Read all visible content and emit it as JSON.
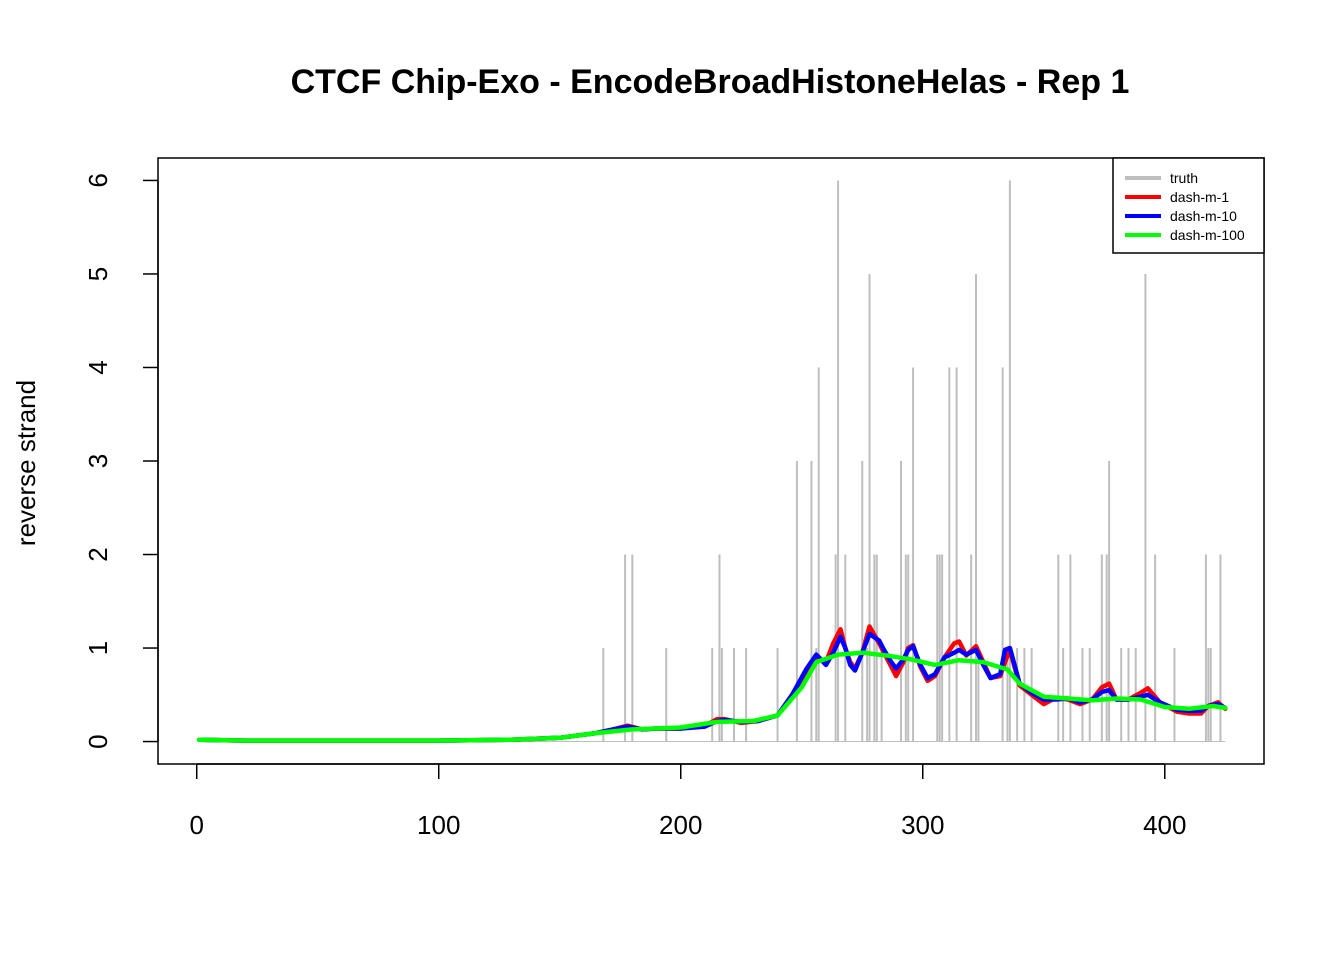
{
  "chart_data": {
    "type": "line",
    "title": "CTCF Chip-Exo - EncodeBroadHistoneHelas - Rep 1",
    "xlabel": "",
    "ylabel": "reverse strand",
    "xlim": [
      -16,
      441
    ],
    "ylim": [
      -0.24,
      6.24
    ],
    "xticks": [
      0,
      100,
      200,
      300,
      400
    ],
    "yticks": [
      0,
      1,
      2,
      3,
      4,
      5,
      6
    ],
    "legend_position": "top-right",
    "legend": [
      "truth",
      "dash-m-1",
      "dash-m-10",
      "dash-m-100"
    ],
    "colors": {
      "truth": "#bebebe",
      "dash-m-1": "#ff0000",
      "dash-m-10": "#0000ff",
      "dash-m-100": "#00ff00"
    },
    "truth": {
      "name": "truth",
      "positions": [
        168,
        177,
        180,
        194,
        213,
        216,
        217,
        222,
        227,
        240,
        248,
        254,
        256,
        257,
        264,
        265,
        268,
        275,
        277,
        278,
        280,
        281,
        283,
        291,
        293,
        294,
        296,
        306,
        307,
        308,
        311,
        314,
        320,
        322,
        323,
        333,
        335,
        336,
        339,
        342,
        345,
        356,
        358,
        361,
        366,
        369,
        374,
        376,
        377,
        382,
        385,
        388,
        392,
        396,
        404,
        417,
        418,
        419,
        423
      ],
      "values": [
        1,
        2,
        2,
        1,
        1,
        2,
        1,
        1,
        1,
        1,
        3,
        3,
        1,
        4,
        2,
        6,
        2,
        3,
        1,
        5,
        2,
        2,
        1,
        3,
        2,
        2,
        4,
        2,
        2,
        2,
        4,
        4,
        2,
        5,
        1,
        4,
        1,
        6,
        1,
        1,
        1,
        2,
        1,
        2,
        1,
        1,
        2,
        2,
        3,
        1,
        1,
        1,
        5,
        2,
        1,
        2,
        1,
        1,
        2
      ],
      "range": [
        1,
        425
      ]
    },
    "series": [
      {
        "name": "dash-m-1",
        "x": [
          1,
          20,
          60,
          100,
          130,
          150,
          165,
          172,
          178,
          184,
          190,
          200,
          210,
          215,
          218,
          225,
          232,
          240,
          246,
          252,
          256,
          260,
          263,
          266,
          268,
          270,
          272,
          275,
          278,
          282,
          284,
          287,
          289,
          292,
          294,
          296,
          299,
          302,
          305,
          309,
          313,
          315,
          318,
          322,
          325,
          328,
          332,
          334,
          336,
          340,
          345,
          350,
          355,
          360,
          365,
          370,
          374,
          377,
          380,
          385,
          390,
          393,
          398,
          405,
          410,
          415,
          418,
          422,
          425
        ],
        "values": [
          0.02,
          0.01,
          0.01,
          0.01,
          0.02,
          0.04,
          0.09,
          0.13,
          0.17,
          0.13,
          0.14,
          0.14,
          0.17,
          0.24,
          0.24,
          0.2,
          0.22,
          0.28,
          0.5,
          0.75,
          0.9,
          0.85,
          1.05,
          1.2,
          1.0,
          0.85,
          0.78,
          0.95,
          1.23,
          1.05,
          0.95,
          0.8,
          0.7,
          0.85,
          1.0,
          1.03,
          0.8,
          0.65,
          0.7,
          0.9,
          1.05,
          1.07,
          0.92,
          1.02,
          0.85,
          0.68,
          0.7,
          0.85,
          0.98,
          0.6,
          0.5,
          0.4,
          0.47,
          0.45,
          0.4,
          0.45,
          0.58,
          0.62,
          0.45,
          0.45,
          0.52,
          0.57,
          0.42,
          0.32,
          0.3,
          0.3,
          0.38,
          0.42,
          0.35
        ]
      },
      {
        "name": "dash-m-10",
        "x": [
          1,
          20,
          60,
          100,
          130,
          150,
          165,
          172,
          178,
          184,
          190,
          200,
          210,
          215,
          218,
          225,
          232,
          240,
          246,
          252,
          256,
          260,
          263,
          266,
          268,
          270,
          272,
          275,
          278,
          282,
          284,
          287,
          289,
          292,
          294,
          296,
          299,
          302,
          305,
          309,
          313,
          315,
          318,
          322,
          325,
          328,
          332,
          334,
          336,
          340,
          345,
          350,
          355,
          360,
          365,
          370,
          374,
          377,
          380,
          385,
          390,
          393,
          398,
          405,
          410,
          415,
          418,
          422,
          425
        ],
        "values": [
          0.02,
          0.01,
          0.01,
          0.01,
          0.02,
          0.04,
          0.09,
          0.13,
          0.16,
          0.13,
          0.14,
          0.14,
          0.16,
          0.22,
          0.23,
          0.21,
          0.22,
          0.28,
          0.5,
          0.78,
          0.93,
          0.82,
          0.95,
          1.12,
          1.0,
          0.82,
          0.76,
          0.95,
          1.15,
          1.08,
          0.98,
          0.85,
          0.78,
          0.88,
          0.98,
          1.02,
          0.82,
          0.68,
          0.72,
          0.9,
          0.95,
          0.98,
          0.93,
          0.98,
          0.82,
          0.68,
          0.72,
          0.98,
          1.0,
          0.62,
          0.52,
          0.45,
          0.45,
          0.46,
          0.42,
          0.45,
          0.53,
          0.55,
          0.45,
          0.45,
          0.48,
          0.5,
          0.42,
          0.34,
          0.33,
          0.33,
          0.38,
          0.4,
          0.36
        ]
      },
      {
        "name": "dash-m-100",
        "x": [
          1,
          20,
          60,
          100,
          130,
          150,
          165,
          180,
          200,
          215,
          230,
          240,
          250,
          256,
          265,
          275,
          285,
          295,
          305,
          315,
          325,
          335,
          340,
          350,
          360,
          370,
          380,
          390,
          400,
          410,
          420,
          425
        ],
        "values": [
          0.02,
          0.01,
          0.01,
          0.01,
          0.02,
          0.04,
          0.09,
          0.13,
          0.15,
          0.21,
          0.22,
          0.28,
          0.58,
          0.85,
          0.93,
          0.95,
          0.92,
          0.88,
          0.82,
          0.87,
          0.85,
          0.77,
          0.62,
          0.48,
          0.46,
          0.44,
          0.46,
          0.45,
          0.37,
          0.35,
          0.38,
          0.36
        ]
      }
    ]
  }
}
